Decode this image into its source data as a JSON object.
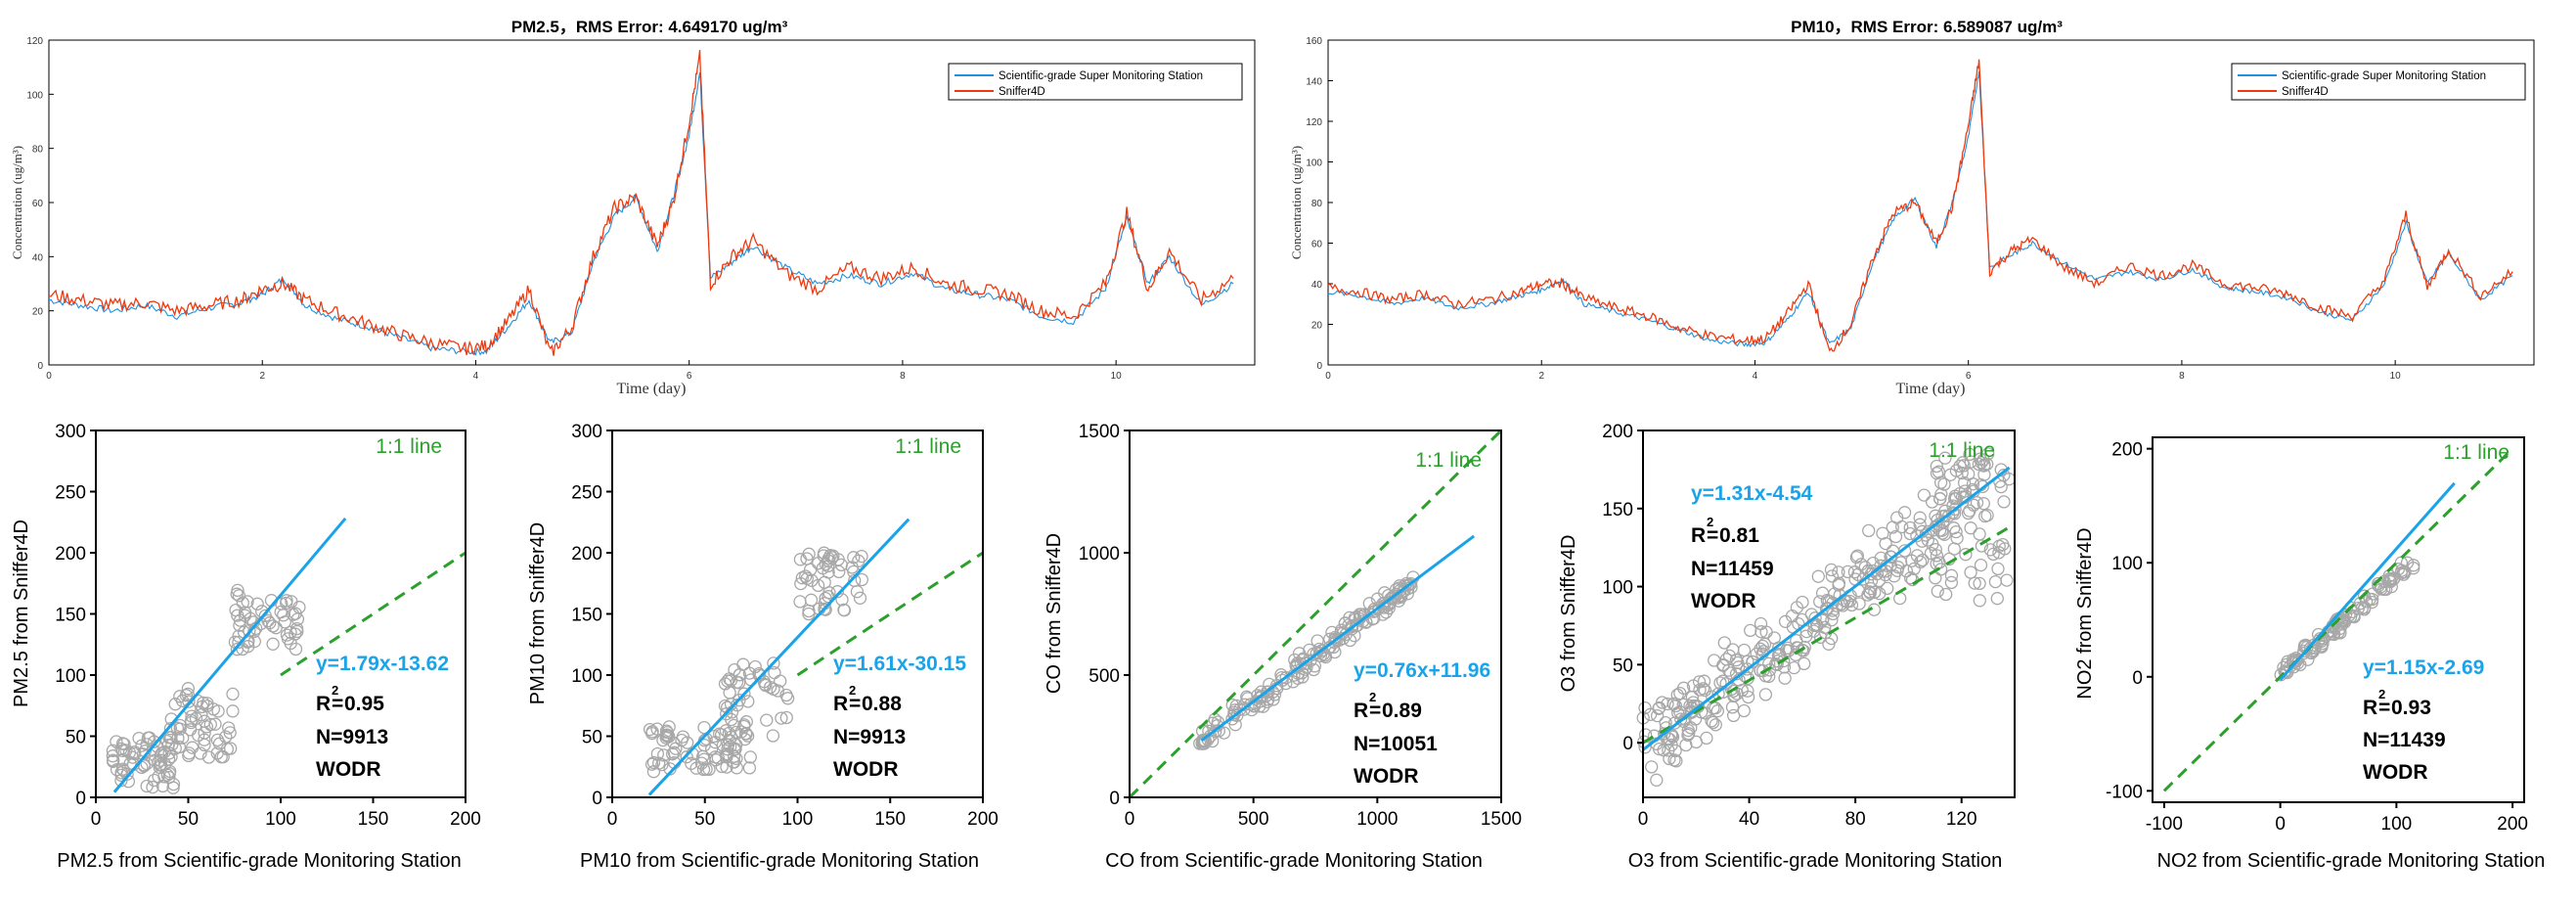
{
  "colors": {
    "station": "#1e90e0",
    "sniffer": "#ee3a10",
    "scatter": "#a8a8a8",
    "fit": "#1aa3e8",
    "identity": "#2ca02c",
    "axis": "#000000"
  },
  "chart_data": [
    {
      "type": "line",
      "title": "PM2.5，RMS Error: 4.649170 ug/m³",
      "xlabel": "Time (day)",
      "ylabel": "Concentration (ug/m³)",
      "xlim": [
        0,
        11.3
      ],
      "ylim": [
        0,
        120
      ],
      "xticks": [
        0,
        2,
        4,
        6,
        8,
        10
      ],
      "yticks": [
        0,
        20,
        40,
        60,
        80,
        100,
        120
      ],
      "legend_position": "top-right",
      "x": [
        0,
        0.3,
        0.6,
        0.9,
        1.2,
        1.5,
        1.8,
        2.0,
        2.2,
        2.4,
        2.7,
        3.0,
        3.3,
        3.6,
        3.9,
        4.1,
        4.3,
        4.5,
        4.7,
        4.9,
        5.1,
        5.3,
        5.5,
        5.7,
        5.85,
        6.0,
        6.1,
        6.2,
        6.4,
        6.6,
        6.9,
        7.2,
        7.5,
        7.8,
        8.1,
        8.4,
        8.7,
        9.0,
        9.3,
        9.6,
        9.9,
        10.1,
        10.3,
        10.5,
        10.8,
        11.1
      ],
      "series": [
        {
          "name": "Scientific-grade Super Monitoring Station",
          "values": [
            24,
            22,
            20,
            22,
            18,
            21,
            23,
            26,
            32,
            22,
            17,
            14,
            10,
            6,
            5,
            5,
            14,
            24,
            8,
            12,
            38,
            55,
            62,
            42,
            62,
            85,
            108,
            32,
            38,
            44,
            36,
            30,
            33,
            30,
            34,
            28,
            26,
            24,
            18,
            16,
            28,
            54,
            30,
            40,
            22,
            30
          ]
        },
        {
          "name": "Sniffer4D",
          "values": [
            26,
            24,
            22,
            23,
            20,
            22,
            24,
            28,
            30,
            24,
            19,
            15,
            11,
            8,
            6,
            7,
            16,
            28,
            4,
            14,
            40,
            58,
            62,
            44,
            60,
            90,
            114,
            30,
            40,
            46,
            34,
            28,
            36,
            32,
            36,
            30,
            28,
            26,
            20,
            18,
            30,
            56,
            28,
            42,
            24,
            32
          ]
        }
      ]
    },
    {
      "type": "line",
      "title": "PM10，RMS Error: 6.589087 ug/m³",
      "xlabel": "Time (day)",
      "ylabel": "Concentration (ug/m³)",
      "xlim": [
        0,
        11.3
      ],
      "ylim": [
        0,
        160
      ],
      "xticks": [
        0,
        2,
        4,
        6,
        8,
        10
      ],
      "yticks": [
        0,
        20,
        40,
        60,
        80,
        100,
        120,
        140,
        160
      ],
      "legend_position": "top-right",
      "x": [
        0,
        0.3,
        0.6,
        0.9,
        1.2,
        1.5,
        1.8,
        2.0,
        2.2,
        2.4,
        2.7,
        3.0,
        3.3,
        3.6,
        3.9,
        4.1,
        4.3,
        4.5,
        4.7,
        4.9,
        5.1,
        5.3,
        5.5,
        5.7,
        5.85,
        6.0,
        6.1,
        6.2,
        6.4,
        6.6,
        6.9,
        7.2,
        7.5,
        7.8,
        8.1,
        8.4,
        8.7,
        9.0,
        9.3,
        9.6,
        9.9,
        10.1,
        10.3,
        10.5,
        10.8,
        11.1
      ],
      "series": [
        {
          "name": "Scientific-grade Super Monitoring Station",
          "values": [
            36,
            34,
            30,
            33,
            28,
            30,
            34,
            37,
            42,
            30,
            26,
            22,
            17,
            12,
            10,
            11,
            22,
            36,
            10,
            18,
            50,
            72,
            82,
            58,
            80,
            112,
            145,
            48,
            54,
            60,
            50,
            42,
            46,
            42,
            47,
            38,
            36,
            33,
            26,
            22,
            40,
            70,
            40,
            55,
            32,
            44
          ]
        },
        {
          "name": "Sniffer4D",
          "values": [
            38,
            36,
            32,
            35,
            30,
            32,
            36,
            40,
            40,
            33,
            28,
            24,
            18,
            14,
            12,
            13,
            25,
            40,
            6,
            20,
            52,
            75,
            80,
            60,
            78,
            118,
            150,
            46,
            56,
            62,
            48,
            40,
            49,
            44,
            49,
            40,
            38,
            35,
            28,
            24,
            42,
            74,
            38,
            57,
            34,
            46
          ]
        }
      ]
    },
    {
      "type": "scatter",
      "xlabel": "PM2.5 from Scientific-grade Monitoring Station",
      "ylabel": "PM2.5 from Sniffer4D",
      "xlim": [
        0,
        200
      ],
      "ylim": [
        0,
        300
      ],
      "xticks": [
        0,
        50,
        100,
        150,
        200
      ],
      "yticks": [
        0,
        50,
        100,
        150,
        200,
        250,
        300
      ],
      "identity_label": "1:1 line",
      "fit": {
        "equation": "y=1.79x-13.62",
        "slope": 1.79,
        "intercept": -13.62,
        "x_range": [
          10,
          135
        ]
      },
      "identity_range": [
        100,
        200
      ],
      "r2": "0.95",
      "n": "N=9913",
      "method": "WODR",
      "point_clusters": [
        {
          "x": [
            8,
            45
          ],
          "y": [
            5,
            50
          ],
          "count": 70
        },
        {
          "x": [
            40,
            75
          ],
          "y": [
            30,
            90
          ],
          "count": 55
        },
        {
          "x": [
            75,
            110
          ],
          "y": [
            120,
            170
          ],
          "count": 55
        }
      ]
    },
    {
      "type": "scatter",
      "xlabel": "PM10 from Scientific-grade Monitoring Station",
      "ylabel": "PM10 from Sniffer4D",
      "xlim": [
        0,
        200
      ],
      "ylim": [
        0,
        300
      ],
      "xticks": [
        0,
        50,
        100,
        150,
        200
      ],
      "yticks": [
        0,
        50,
        100,
        150,
        200,
        250,
        300
      ],
      "identity_label": "1:1 line",
      "fit": {
        "equation": "y=1.61x-30.15",
        "slope": 1.61,
        "intercept": -30.15,
        "x_range": [
          20,
          160
        ]
      },
      "identity_range": [
        100,
        200
      ],
      "r2": "0.88",
      "n": "N=9913",
      "method": "WODR",
      "point_clusters": [
        {
          "x": [
            20,
            75
          ],
          "y": [
            20,
            60
          ],
          "count": 80
        },
        {
          "x": [
            60,
            95
          ],
          "y": [
            50,
            110
          ],
          "count": 45
        },
        {
          "x": [
            100,
            135
          ],
          "y": [
            150,
            200
          ],
          "count": 50
        }
      ]
    },
    {
      "type": "scatter",
      "xlabel": "CO from Scientific-grade Monitoring Station",
      "ylabel": "CO from Sniffer4D",
      "xlim": [
        0,
        1500
      ],
      "ylim": [
        0,
        1500
      ],
      "xticks": [
        0,
        500,
        1000,
        1500
      ],
      "yticks": [
        0,
        500,
        1000,
        1500
      ],
      "identity_label": "1:1 line",
      "fit": {
        "equation": "y=0.76x+11.96",
        "slope": 0.76,
        "intercept": 11.96,
        "x_range": [
          290,
          1390
        ]
      },
      "identity_range": [
        0,
        1500
      ],
      "r2": "0.89",
      "n": "N=10051",
      "method": "WODR",
      "point_clusters": [
        {
          "x": [
            280,
            1150
          ],
          "y": [
            220,
            900
          ],
          "count": 180,
          "along": [
            0.76,
            11.96
          ],
          "spread": 60
        }
      ]
    },
    {
      "type": "scatter",
      "xlabel": "O3 from Scientific-grade Monitoring Station",
      "ylabel": "O3 from Sniffer4D",
      "xlim": [
        0,
        140
      ],
      "ylim": [
        -35,
        200
      ],
      "xticks": [
        0,
        40,
        80,
        120
      ],
      "yticks": [
        0,
        50,
        100,
        150,
        200
      ],
      "identity_label": "1:1 line",
      "fit": {
        "equation": "y=1.31x-4.54",
        "slope": 1.31,
        "intercept": -4.54,
        "x_range": [
          0,
          138
        ]
      },
      "identity_range": [
        0,
        140
      ],
      "r2": "0.81",
      "n": "N=11459",
      "method": "WODR",
      "point_clusters": [
        {
          "x": [
            0,
            130
          ],
          "y": [
            -30,
            190
          ],
          "count": 320,
          "along": [
            1.31,
            -4.54
          ],
          "spread": 32
        },
        {
          "x": [
            110,
            138
          ],
          "y": [
            90,
            185
          ],
          "count": 60
        }
      ]
    },
    {
      "type": "scatter",
      "xlabel": "NO2 from Scientific-grade Monitoring Station",
      "ylabel": "NO2 from Sniffer4D",
      "xlim": [
        -110,
        210
      ],
      "ylim": [
        -110,
        210
      ],
      "xticks": [
        -100,
        0,
        100,
        200
      ],
      "yticks": [
        -100,
        0,
        100,
        200
      ],
      "identity_label": "1:1 line",
      "fit": {
        "equation": "y=1.15x-2.69",
        "slope": 1.15,
        "intercept": -2.69,
        "x_range": [
          0,
          150
        ]
      },
      "identity_range": [
        -100,
        200
      ],
      "r2": "0.93",
      "n": "N=11439",
      "method": "WODR",
      "point_clusters": [
        {
          "x": [
            0,
            115
          ],
          "y": [
            0,
            100
          ],
          "count": 110,
          "along": [
            0.87,
            2
          ],
          "spread": 10
        }
      ]
    }
  ]
}
